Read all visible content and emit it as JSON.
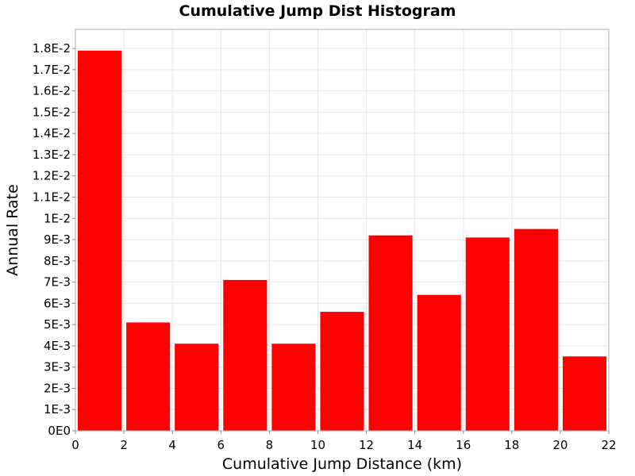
{
  "chart_data": {
    "type": "bar",
    "title": "Cumulative Jump Dist Histogram",
    "xlabel": "Cumulative Jump Distance (km)",
    "ylabel": "Annual Rate",
    "xlim": [
      0,
      22
    ],
    "ylim": [
      0,
      0.0189
    ],
    "x_ticks": [
      0,
      2,
      4,
      6,
      8,
      10,
      12,
      14,
      16,
      18,
      20,
      22
    ],
    "x_tick_labels": [
      "0",
      "2",
      "4",
      "6",
      "8",
      "10",
      "12",
      "14",
      "16",
      "18",
      "20",
      "22"
    ],
    "y_ticks": [
      0,
      0.001,
      0.002,
      0.003,
      0.004,
      0.005,
      0.006,
      0.007,
      0.008,
      0.009,
      0.01,
      0.011,
      0.012,
      0.013,
      0.014,
      0.015,
      0.016,
      0.017,
      0.018
    ],
    "y_tick_labels": [
      "0E0",
      "1E-3",
      "2E-3",
      "3E-3",
      "4E-3",
      "5E-3",
      "6E-3",
      "7E-3",
      "8E-3",
      "9E-3",
      "1E-2",
      "1.1E-2",
      "1.2E-2",
      "1.3E-2",
      "1.4E-2",
      "1.5E-2",
      "1.6E-2",
      "1.7E-2",
      "1.8E-2"
    ],
    "bins": [
      {
        "start": 0,
        "end": 2,
        "value": 0.0179
      },
      {
        "start": 2,
        "end": 4,
        "value": 0.0051
      },
      {
        "start": 4,
        "end": 6,
        "value": 0.0041
      },
      {
        "start": 6,
        "end": 8,
        "value": 0.0071
      },
      {
        "start": 8,
        "end": 10,
        "value": 0.0041
      },
      {
        "start": 10,
        "end": 12,
        "value": 0.0056
      },
      {
        "start": 12,
        "end": 14,
        "value": 0.0092
      },
      {
        "start": 14,
        "end": 16,
        "value": 0.0064
      },
      {
        "start": 16,
        "end": 18,
        "value": 0.0091
      },
      {
        "start": 18,
        "end": 20,
        "value": 0.0095
      },
      {
        "start": 20,
        "end": 22,
        "value": 0.0035
      }
    ],
    "bar_color": "#ff0000",
    "grid": true,
    "legend": "none"
  }
}
